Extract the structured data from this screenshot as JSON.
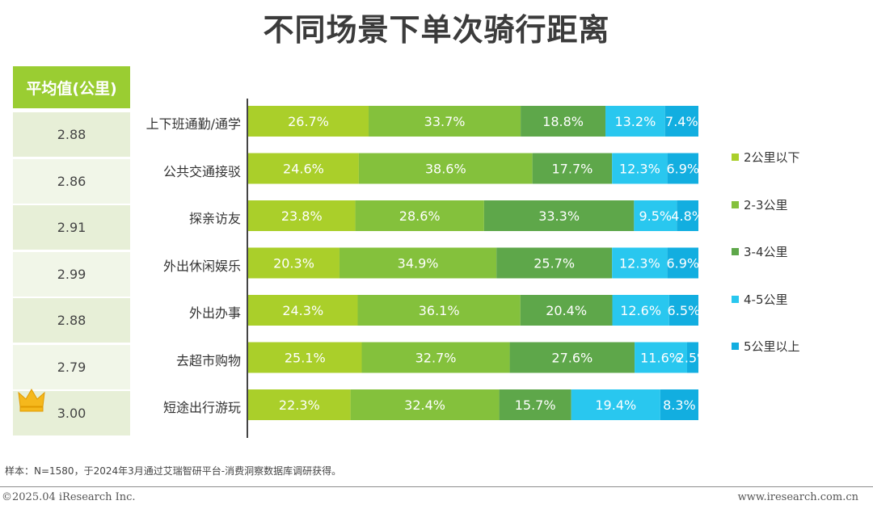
{
  "title": "不同场景下单次骑行距离",
  "avg_header": "平均值(公里)",
  "footnote": "样本：N=1580，于2024年3月通过艾瑞智研平台-消费洞察数据库调研获得。",
  "copyright": "©2025.04 iResearch Inc.",
  "website": "www.iresearch.com.cn",
  "crown_icon": "crown-icon",
  "colors": {
    "header_green": "#9acd32",
    "seg1": "#aacf2a",
    "seg2": "#84c13c",
    "seg3": "#5ea74a",
    "seg4": "#29c7ef",
    "seg5": "#12aee0"
  },
  "chart_data": {
    "type": "bar",
    "orientation": "horizontal",
    "stacked": true,
    "xlim": [
      0,
      100
    ],
    "legend_position": "right",
    "categories": [
      "上下班通勤/通学",
      "公共交通接驳",
      "探亲访友",
      "外出休闲娱乐",
      "外出办事",
      "去超市购物",
      "短途出行游玩"
    ],
    "averages": [
      "2.88",
      "2.86",
      "2.91",
      "2.99",
      "2.88",
      "2.79",
      "3.00"
    ],
    "series": [
      {
        "name": "2公里以下",
        "values": [
          26.7,
          24.6,
          23.8,
          20.3,
          24.3,
          25.1,
          22.3
        ],
        "labels": [
          "26.7%",
          "24.6%",
          "23.8%",
          "20.3%",
          "24.3%",
          "25.1%",
          "22.3%"
        ]
      },
      {
        "name": "2-3公里",
        "values": [
          33.7,
          38.6,
          28.6,
          34.9,
          36.1,
          32.7,
          32.4
        ],
        "labels": [
          "33.7%",
          "38.6%",
          "28.6%",
          "34.9%",
          "36.1%",
          "32.7%",
          "32.4%"
        ]
      },
      {
        "name": "3-4公里",
        "values": [
          18.8,
          17.7,
          33.3,
          25.7,
          20.4,
          27.6,
          15.7
        ],
        "labels": [
          "18.8%",
          "17.7%",
          "33.3%",
          "25.7%",
          "20.4%",
          "27.6%",
          "15.7%"
        ]
      },
      {
        "name": "4-5公里",
        "values": [
          13.2,
          12.3,
          9.5,
          12.3,
          12.6,
          11.6,
          19.4
        ],
        "labels": [
          "13.2%",
          "12.3%",
          "9.5%",
          "12.3%",
          "12.6%",
          "11.6%",
          "19.4%"
        ]
      },
      {
        "name": "5公里以上",
        "values": [
          7.4,
          6.9,
          4.8,
          6.9,
          6.5,
          2.5,
          8.3
        ],
        "labels": [
          "7.4%",
          "6.9%",
          "4.8%",
          "6.9%",
          "6.5%",
          "2.5%",
          "8.3%"
        ]
      }
    ]
  }
}
